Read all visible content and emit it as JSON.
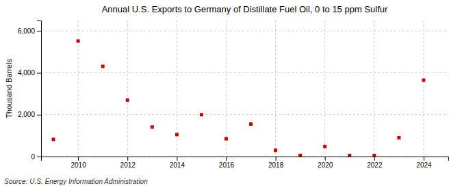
{
  "chart_data": {
    "type": "scatter",
    "title": "Annual U.S. Exports to Germany of Distillate Fuel Oil, 0 to 15 ppm Sulfur",
    "ylabel": "Thousand Barrels",
    "source": "Source: U.S. Energy Information Administration",
    "x": [
      2009,
      2010,
      2011,
      2012,
      2013,
      2014,
      2015,
      2016,
      2017,
      2018,
      2019,
      2020,
      2021,
      2022,
      2023,
      2024
    ],
    "values": [
      820,
      5520,
      4310,
      2700,
      1410,
      1050,
      2000,
      850,
      1550,
      300,
      55,
      480,
      50,
      50,
      900,
      3650
    ],
    "color": "#cc0000",
    "marker": "square",
    "xlim": [
      2008.5,
      2025.0
    ],
    "xticks": [
      2010,
      2012,
      2014,
      2016,
      2018,
      2020,
      2022,
      2024
    ],
    "ylim": [
      0,
      6500
    ],
    "yticks": [
      0,
      {
        "value": 2000,
        "label": "2,000"
      },
      {
        "value": 4000,
        "label": "4,000"
      },
      {
        "value": 6000,
        "label": "6,000"
      }
    ],
    "grid": true
  }
}
